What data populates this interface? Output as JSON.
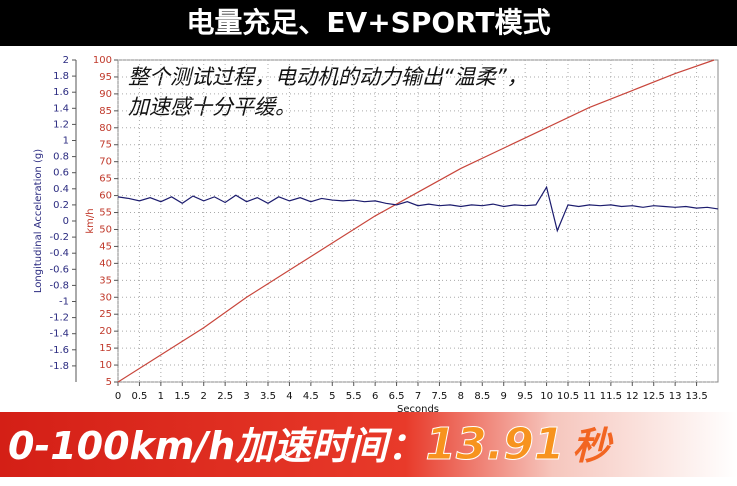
{
  "chart_data": {
    "type": "line",
    "title": "电量充足、EV+SPORT模式",
    "annotations": [
      "整个测试过程，电动机的动力输出“温柔”，",
      "加速感十分平缓。"
    ],
    "x_label": "Seconds",
    "y_label": "km/h",
    "y2_label": "Longitudinal Acceleration (g)",
    "xlim": [
      0,
      14
    ],
    "xticks": [
      0,
      0.5,
      1,
      1.5,
      2,
      2.5,
      3,
      3.5,
      4,
      4.5,
      5,
      5.5,
      6,
      6.5,
      7,
      7.5,
      8,
      8.5,
      9,
      9.5,
      10,
      10.5,
      11,
      11.5,
      12,
      12.5,
      13,
      13.5
    ],
    "ylim": [
      5,
      100
    ],
    "yticks": [
      100,
      95,
      90,
      85,
      80,
      75,
      70,
      65,
      60,
      55,
      50,
      45,
      40,
      35,
      30,
      25,
      20,
      15,
      10,
      5
    ],
    "y2lim": [
      -2,
      2
    ],
    "y2ticks": [
      2,
      1.8,
      1.6,
      1.4,
      1.2,
      1,
      0.8,
      0.6,
      0.4,
      0.2,
      0,
      -0.2,
      -0.4,
      -0.6,
      -0.8,
      -1,
      -1.2,
      -1.4,
      -1.6,
      -1.8
    ],
    "grid": true,
    "series": [
      {
        "color": "#c8463c",
        "axis": "y",
        "x": [
          0,
          1,
          2,
          3,
          4,
          5,
          6,
          7,
          8,
          9,
          10,
          11,
          12,
          13,
          13.91
        ],
        "values": [
          5,
          13,
          21,
          30,
          38,
          46,
          54,
          61,
          68,
          74,
          80,
          86,
          91,
          96,
          100
        ]
      },
      {
        "color": "#1c1c6e",
        "axis": "y2",
        "x": [
          0,
          0.25,
          0.5,
          0.75,
          1,
          1.25,
          1.5,
          1.75,
          2,
          2.25,
          2.5,
          2.75,
          3,
          3.25,
          3.5,
          3.75,
          4,
          4.25,
          4.5,
          4.75,
          5,
          5.25,
          5.5,
          5.75,
          6,
          6.25,
          6.5,
          6.75,
          7,
          7.25,
          7.5,
          7.75,
          8,
          8.25,
          8.5,
          8.75,
          9,
          9.25,
          9.5,
          9.75,
          10,
          10.25,
          10.5,
          10.75,
          11,
          11.25,
          11.5,
          11.75,
          12,
          12.25,
          12.5,
          12.75,
          13,
          13.25,
          13.5,
          13.75,
          14
        ],
        "values": [
          0.3,
          0.28,
          0.25,
          0.29,
          0.24,
          0.3,
          0.22,
          0.31,
          0.25,
          0.3,
          0.23,
          0.32,
          0.24,
          0.29,
          0.22,
          0.3,
          0.25,
          0.29,
          0.24,
          0.28,
          0.26,
          0.25,
          0.26,
          0.24,
          0.25,
          0.22,
          0.2,
          0.24,
          0.19,
          0.21,
          0.19,
          0.2,
          0.18,
          0.2,
          0.19,
          0.21,
          0.18,
          0.2,
          0.19,
          0.2,
          0.42,
          -0.12,
          0.2,
          0.18,
          0.2,
          0.19,
          0.2,
          0.18,
          0.19,
          0.17,
          0.19,
          0.18,
          0.17,
          0.18,
          0.16,
          0.17,
          0.15
        ]
      }
    ]
  },
  "banner": {
    "label": "0-100km/h加速时间：",
    "time": "13.91",
    "unit": "秒"
  }
}
